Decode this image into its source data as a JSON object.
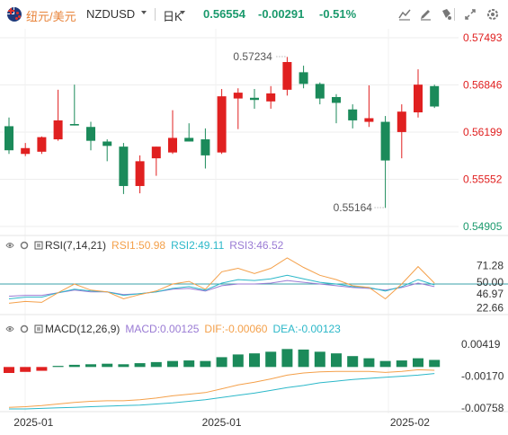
{
  "header": {
    "symbol_cn": "纽元/美元",
    "symbol_en": "NZDUSD",
    "period": "日K",
    "price": "0.56554",
    "change": "-0.00291",
    "change_pct": "-0.51%",
    "up_color": "#e02020",
    "down_color": "#1b8a5a"
  },
  "toolbar": {
    "icons": [
      "line-tool-icon",
      "draw-tool-icon",
      "paint-tool-icon",
      "indicator-tool-icon",
      "expand-icon",
      "settings-icon"
    ]
  },
  "price_axis": {
    "labels": [
      "0.57493",
      "0.56846",
      "0.56199",
      "0.55552",
      "0.54905"
    ],
    "max_label": "0.57234",
    "min_label": "0.55164"
  },
  "candles": [
    {
      "o": 0.5628,
      "h": 0.564,
      "l": 0.559,
      "c": 0.5595
    },
    {
      "o": 0.559,
      "h": 0.5605,
      "l": 0.5587,
      "c": 0.5598
    },
    {
      "o": 0.5593,
      "h": 0.5614,
      "l": 0.559,
      "c": 0.5613
    },
    {
      "o": 0.561,
      "h": 0.5678,
      "l": 0.5608,
      "c": 0.5636
    },
    {
      "o": 0.5631,
      "h": 0.5685,
      "l": 0.5629,
      "c": 0.5629
    },
    {
      "o": 0.5627,
      "h": 0.5634,
      "l": 0.5595,
      "c": 0.5608
    },
    {
      "o": 0.5607,
      "h": 0.561,
      "l": 0.558,
      "c": 0.5601
    },
    {
      "o": 0.56,
      "h": 0.5605,
      "l": 0.5535,
      "c": 0.5546
    },
    {
      "o": 0.5546,
      "h": 0.5588,
      "l": 0.5536,
      "c": 0.558
    },
    {
      "o": 0.5584,
      "h": 0.56,
      "l": 0.556,
      "c": 0.56
    },
    {
      "o": 0.5592,
      "h": 0.565,
      "l": 0.559,
      "c": 0.5612
    },
    {
      "o": 0.5612,
      "h": 0.5632,
      "l": 0.5607,
      "c": 0.5607
    },
    {
      "o": 0.561,
      "h": 0.5625,
      "l": 0.557,
      "c": 0.5588
    },
    {
      "o": 0.5592,
      "h": 0.5679,
      "l": 0.559,
      "c": 0.5669
    },
    {
      "o": 0.5666,
      "h": 0.568,
      "l": 0.5624,
      "c": 0.5674
    },
    {
      "o": 0.5667,
      "h": 0.5679,
      "l": 0.5652,
      "c": 0.5664
    },
    {
      "o": 0.5662,
      "h": 0.5683,
      "l": 0.5652,
      "c": 0.5673
    },
    {
      "o": 0.5678,
      "h": 0.5723,
      "l": 0.567,
      "c": 0.5716
    },
    {
      "o": 0.5702,
      "h": 0.5711,
      "l": 0.568,
      "c": 0.5686
    },
    {
      "o": 0.5686,
      "h": 0.5688,
      "l": 0.5658,
      "c": 0.5666
    },
    {
      "o": 0.5668,
      "h": 0.5672,
      "l": 0.5632,
      "c": 0.566
    },
    {
      "o": 0.5651,
      "h": 0.5658,
      "l": 0.5625,
      "c": 0.5636
    },
    {
      "o": 0.5634,
      "h": 0.5684,
      "l": 0.5627,
      "c": 0.5639
    },
    {
      "o": 0.5634,
      "h": 0.5642,
      "l": 0.5516,
      "c": 0.5581
    },
    {
      "o": 0.562,
      "h": 0.5658,
      "l": 0.5584,
      "c": 0.5648
    },
    {
      "o": 0.5647,
      "h": 0.5706,
      "l": 0.564,
      "c": 0.5685
    },
    {
      "o": 0.5683,
      "h": 0.5685,
      "l": 0.5653,
      "c": 0.5655
    }
  ],
  "rsi": {
    "title": "RSI(7,14,21)",
    "rsi1_label": "RSI1:50.98",
    "rsi2_label": "RSI2:49.11",
    "rsi3_label": "RSI3:46.52",
    "rsi1_color": "#f4a04a",
    "rsi2_color": "#2cb8c9",
    "rsi3_color": "#9a7bd4",
    "axis_labels": [
      "71.28",
      "50.00",
      "46.97",
      "22.66"
    ],
    "rsi1": [
      28,
      30,
      29,
      40,
      50,
      43,
      41,
      33,
      38,
      42,
      50,
      53,
      44,
      64,
      68,
      62,
      68,
      80,
      69,
      60,
      55,
      48,
      46,
      33,
      50,
      70,
      51
    ],
    "rsi2": [
      33,
      35,
      35,
      40,
      44,
      42,
      41,
      37,
      39,
      41,
      45,
      47,
      43,
      51,
      55,
      54,
      56,
      60,
      56,
      52,
      50,
      47,
      46,
      42,
      47,
      55,
      49
    ],
    "rsi3": [
      36,
      37,
      37,
      40,
      43,
      41,
      41,
      38,
      39,
      41,
      44,
      45,
      42,
      48,
      50,
      50,
      51,
      54,
      52,
      50,
      48,
      46,
      45,
      43,
      46,
      51,
      47
    ]
  },
  "macd": {
    "title": "MACD(12,26,9)",
    "macd_label": "MACD:0.00125",
    "dif_label": "DIF:-0.00060",
    "dea_label": "DEA:-0.00123",
    "macd_label_color": "#9a7bd4",
    "dif_color": "#f4a04a",
    "dea_color": "#2cb8c9",
    "axis_labels": [
      "0.00419",
      "-0.00170",
      "-0.00758"
    ],
    "hist": [
      -0.0011,
      -0.0009,
      -0.0007,
      0.0002,
      0.0004,
      0.0005,
      0.0006,
      0.0005,
      0.0007,
      0.0009,
      0.0011,
      0.0012,
      0.0011,
      0.0018,
      0.0023,
      0.0025,
      0.0028,
      0.0033,
      0.0032,
      0.0028,
      0.0025,
      0.002,
      0.0016,
      0.0011,
      0.0012,
      0.0016,
      0.0013
    ],
    "dif": [
      -0.0074,
      -0.0073,
      -0.0071,
      -0.0068,
      -0.0065,
      -0.0063,
      -0.0062,
      -0.0062,
      -0.006,
      -0.0057,
      -0.0053,
      -0.005,
      -0.0047,
      -0.004,
      -0.0033,
      -0.0028,
      -0.0022,
      -0.0015,
      -0.0011,
      -0.0009,
      -0.0008,
      -0.0008,
      -0.0008,
      -0.001,
      -0.0008,
      -0.0005,
      -0.0006
    ],
    "dea": [
      -0.0077,
      -0.0077,
      -0.0076,
      -0.0075,
      -0.0074,
      -0.0073,
      -0.0072,
      -0.0071,
      -0.007,
      -0.0068,
      -0.0066,
      -0.0063,
      -0.006,
      -0.0056,
      -0.0052,
      -0.0048,
      -0.0043,
      -0.0038,
      -0.0034,
      -0.0029,
      -0.0026,
      -0.0023,
      -0.0021,
      -0.0019,
      -0.0017,
      -0.0015,
      -0.0012
    ]
  },
  "x_axis": {
    "labels": [
      "2025-01",
      "2025-01",
      "2025-02"
    ],
    "label_index": [
      1.5,
      13,
      24.5
    ]
  }
}
